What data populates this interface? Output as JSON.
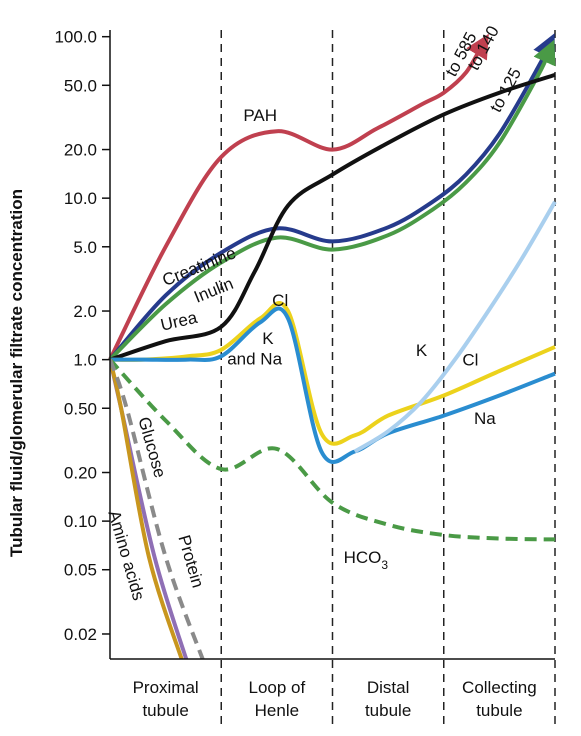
{
  "chart_data": {
    "type": "line",
    "title": "",
    "ylabel": "Tubular fluid/glomerular filtrate concentration",
    "yscale": "log",
    "ylim": [
      0.014,
      110
    ],
    "xlim": [
      0,
      4
    ],
    "y_ticks": [
      {
        "value": 100,
        "label": "100.0"
      },
      {
        "value": 50,
        "label": "50.0"
      },
      {
        "value": 20,
        "label": "20.0"
      },
      {
        "value": 10,
        "label": "10.0"
      },
      {
        "value": 5,
        "label": "5.0"
      },
      {
        "value": 2,
        "label": "2.0"
      },
      {
        "value": 1,
        "label": "1.0"
      },
      {
        "value": 0.5,
        "label": "0.50"
      },
      {
        "value": 0.2,
        "label": "0.20"
      },
      {
        "value": 0.1,
        "label": "0.10"
      },
      {
        "value": 0.05,
        "label": "0.05"
      },
      {
        "value": 0.02,
        "label": "0.02"
      }
    ],
    "regions": [
      {
        "line1": "Proximal",
        "line2": "tubule"
      },
      {
        "line1": "Loop of",
        "line2": "Henle"
      },
      {
        "line1": "Distal",
        "line2": "tubule"
      },
      {
        "line1": "Collecting",
        "line2": "tubule"
      }
    ],
    "series": [
      {
        "name": "PAH",
        "color": "#c0404f",
        "dashed": false,
        "arrow": true,
        "end_label": "to 585",
        "x": [
          0,
          0.5,
          1,
          1.5,
          2,
          2.4,
          2.8,
          3,
          3.2,
          3.35
        ],
        "y": [
          1,
          5,
          18,
          26,
          20,
          27,
          38,
          45,
          60,
          90
        ]
      },
      {
        "name": "Creatinine",
        "color": "#263b8c",
        "dashed": false,
        "arrow": true,
        "end_label": "to 140",
        "x": [
          0,
          0.5,
          1,
          1.5,
          2,
          2.5,
          2.9,
          3.2,
          3.5,
          3.85,
          3.95
        ],
        "y": [
          1,
          2.5,
          4.6,
          6.5,
          5.4,
          6.6,
          9.5,
          14,
          25,
          65,
          90
        ]
      },
      {
        "name": "Inulin",
        "color": "#4a9a46",
        "dashed": false,
        "arrow": true,
        "end_label": "to 125",
        "x": [
          0,
          0.5,
          1,
          1.5,
          2,
          2.5,
          2.9,
          3.2,
          3.5,
          3.85,
          3.95
        ],
        "y": [
          1,
          2.2,
          4.0,
          5.7,
          4.8,
          5.9,
          8.5,
          12.5,
          22,
          58,
          82
        ]
      },
      {
        "name": "Urea",
        "color": "#111111",
        "dashed": false,
        "arrow": false,
        "end_label": "",
        "x": [
          0,
          0.5,
          1,
          1.3,
          1.6,
          2,
          2.5,
          3,
          3.5,
          4
        ],
        "y": [
          1,
          1.3,
          1.6,
          3.5,
          9,
          14,
          22,
          33,
          45,
          58
        ]
      },
      {
        "name": "Cl",
        "color": "#ecd21c",
        "dashed": false,
        "arrow": false,
        "end_label": "",
        "x": [
          0,
          0.3,
          0.7,
          1,
          1.35,
          1.6,
          1.9,
          2.2,
          2.5,
          3,
          3.5,
          4
        ],
        "y": [
          1,
          1.0,
          1.05,
          1.15,
          1.8,
          2.0,
          0.35,
          0.34,
          0.45,
          0.6,
          0.85,
          1.2
        ]
      },
      {
        "name": "Na",
        "color": "#2a8dd0",
        "dashed": false,
        "arrow": false,
        "end_label": "",
        "x": [
          0,
          0.3,
          0.7,
          1,
          1.35,
          1.6,
          1.9,
          2.2,
          2.5,
          3,
          3.5,
          4
        ],
        "y": [
          1,
          1.0,
          1.0,
          1.05,
          1.7,
          1.8,
          0.27,
          0.27,
          0.35,
          0.45,
          0.6,
          0.82
        ]
      },
      {
        "name": "K",
        "color": "#a9cfee",
        "dashed": false,
        "arrow": false,
        "end_label": "",
        "x": [
          2.2,
          2.5,
          2.8,
          3.1,
          3.4,
          3.7,
          4
        ],
        "y": [
          0.27,
          0.36,
          0.55,
          1.0,
          2.0,
          4.2,
          9.5
        ]
      },
      {
        "name": "HCO3",
        "color": "#4a9a46",
        "dashed": true,
        "arrow": false,
        "end_label": "",
        "x": [
          0,
          0.5,
          1,
          1.5,
          2,
          2.5,
          3,
          3.5,
          4
        ],
        "y": [
          1,
          0.42,
          0.21,
          0.28,
          0.13,
          0.095,
          0.082,
          0.078,
          0.077
        ]
      },
      {
        "name": "Glucose",
        "color": "#8f6fb5",
        "dashed": false,
        "arrow": false,
        "end_label": "",
        "x": [
          0,
          0.1,
          0.4,
          0.7
        ],
        "y": [
          1,
          0.5,
          0.06,
          0.013
        ]
      },
      {
        "name": "Amino acids",
        "color": "#c8961e",
        "dashed": false,
        "arrow": false,
        "end_label": "",
        "x": [
          0,
          0.1,
          0.35,
          0.66
        ],
        "y": [
          1,
          0.5,
          0.06,
          0.013
        ]
      },
      {
        "name": "Protein",
        "color": "#8a8a8a",
        "dashed": true,
        "arrow": false,
        "end_label": "",
        "x": [
          0,
          0.15,
          0.5,
          0.85
        ],
        "y": [
          1,
          0.5,
          0.06,
          0.013
        ]
      }
    ],
    "annotations": [
      {
        "text": "PAH",
        "x": 1.35,
        "y": 30,
        "rotate": 0
      },
      {
        "text": "Creatinine",
        "x": 0.82,
        "y": 3.5,
        "rotate": -22
      },
      {
        "text": "Inulin",
        "x": 0.95,
        "y": 2.5,
        "rotate": -22
      },
      {
        "text": "Urea",
        "x": 0.63,
        "y": 1.6,
        "rotate": -13
      },
      {
        "text": "Cl",
        "x": 1.53,
        "y": 2.15,
        "rotate": 0
      },
      {
        "text": "K",
        "x": 1.42,
        "y": 1.25,
        "rotate": 0
      },
      {
        "text": "and Na",
        "x": 1.3,
        "y": 0.93,
        "rotate": 0
      },
      {
        "text": "K",
        "x": 2.8,
        "y": 1.05,
        "rotate": 0
      },
      {
        "text": "Cl",
        "x": 3.24,
        "y": 0.92,
        "rotate": 0
      },
      {
        "text": "Na",
        "x": 3.37,
        "y": 0.4,
        "rotate": 0
      },
      {
        "text": "Glucose",
        "x": 0.33,
        "y": 0.28,
        "rotate": 74
      },
      {
        "text": "Amino acids",
        "x": 0.1,
        "y": 0.06,
        "rotate": 74
      },
      {
        "text": "Protein",
        "x": 0.68,
        "y": 0.055,
        "rotate": 74
      },
      {
        "text": "to 585",
        "x": 3.2,
        "y": 75,
        "rotate": -62
      },
      {
        "text": "to 140",
        "x": 3.4,
        "y": 82,
        "rotate": -62
      },
      {
        "text": "to 125",
        "x": 3.6,
        "y": 45,
        "rotate": -62
      }
    ],
    "hco3_label": {
      "base": "HCO",
      "sub": "3",
      "x": 2.1,
      "y": 0.055
    }
  }
}
